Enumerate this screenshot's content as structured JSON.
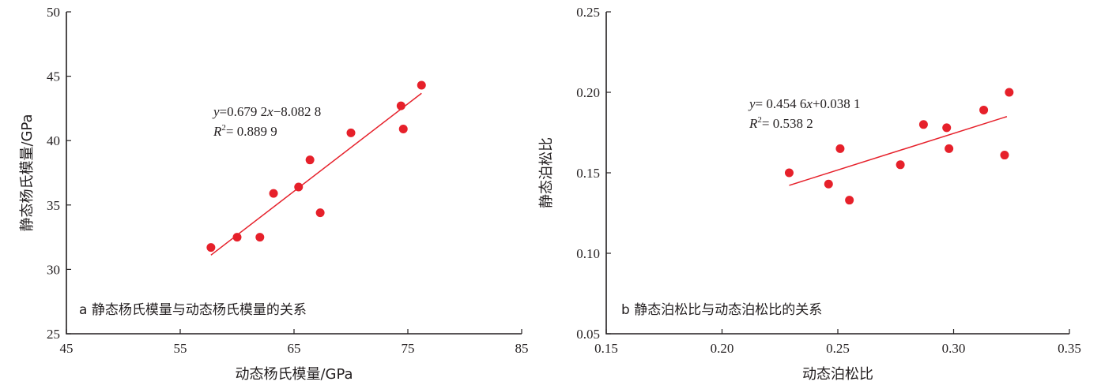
{
  "chart_data": [
    {
      "type": "scatter",
      "caption": "a 静态杨氏模量与动态杨氏模量的关系",
      "xlabel": "动态杨氏模量/GPa",
      "ylabel": "静态杨氏模量/GPa",
      "xlim": [
        45,
        85
      ],
      "ylim": [
        25,
        50
      ],
      "xticks": [
        "45",
        "55",
        "65",
        "75",
        "85"
      ],
      "yticks": [
        "25",
        "30",
        "35",
        "40",
        "45",
        "50"
      ],
      "points": {
        "x": [
          57.7,
          60.0,
          62.0,
          63.2,
          65.4,
          66.4,
          67.3,
          70.0,
          74.4,
          74.6,
          76.2
        ],
        "y": [
          31.7,
          32.5,
          32.5,
          35.9,
          36.4,
          38.5,
          34.4,
          40.6,
          42.7,
          40.9,
          44.3
        ]
      },
      "fit": {
        "slope": 0.6792,
        "intercept": -8.0828,
        "x_range": [
          57.7,
          76.2
        ]
      },
      "equation": {
        "y_part": "y",
        "eq_mid": "=0.679 2",
        "x_part": "x",
        "eq_tail": "−8.082 8"
      },
      "r2": {
        "r": "R",
        "sup": "2",
        "value": "= 0.889 9"
      },
      "marker_color": "#e6202a",
      "line_color": "#e6202a"
    },
    {
      "type": "scatter",
      "caption": "b 静态泊松比与动态泊松比的关系",
      "xlabel": "动态泊松比",
      "ylabel": "静态泊松比",
      "xlim": [
        0.15,
        0.35
      ],
      "ylim": [
        0.05,
        0.25
      ],
      "xticks": [
        "0.15",
        "0.20",
        "0.25",
        "0.30",
        "0.35"
      ],
      "yticks": [
        "0.05",
        "0.10",
        "0.15",
        "0.20",
        "0.25"
      ],
      "points": {
        "x": [
          0.229,
          0.246,
          0.251,
          0.255,
          0.277,
          0.287,
          0.297,
          0.298,
          0.313,
          0.322,
          0.324
        ],
        "y": [
          0.15,
          0.143,
          0.165,
          0.133,
          0.155,
          0.18,
          0.178,
          0.165,
          0.189,
          0.161,
          0.2
        ]
      },
      "fit": {
        "slope": 0.4546,
        "intercept": 0.0381,
        "x_range": [
          0.229,
          0.323
        ]
      },
      "equation": {
        "y_part": "y",
        "eq_mid": "= 0.454 6",
        "x_part": "x",
        "eq_tail": "+0.038 1"
      },
      "r2": {
        "r": "R",
        "sup": "2",
        "value": "= 0.538 2"
      },
      "marker_color": "#e6202a",
      "line_color": "#e6202a"
    }
  ]
}
